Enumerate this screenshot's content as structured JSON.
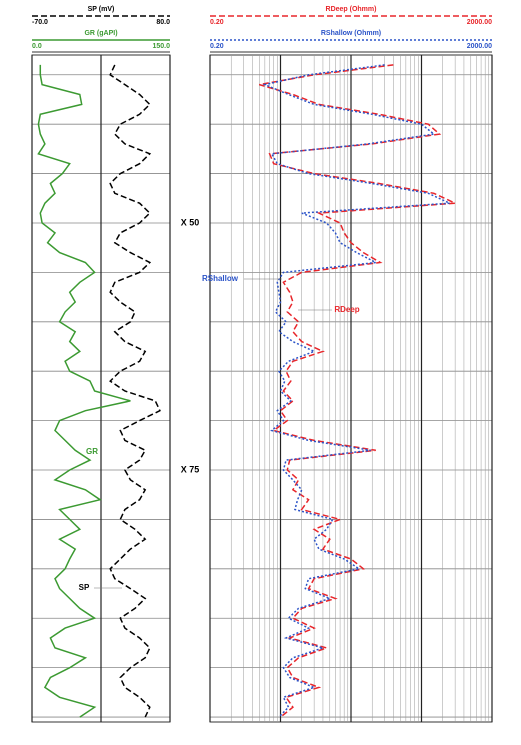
{
  "chart_data": {
    "type": "well-log",
    "depth": [
      34,
      35,
      36,
      37,
      38,
      39,
      40,
      41,
      42,
      43,
      44,
      45,
      46,
      47,
      48,
      49,
      50,
      51,
      52,
      53,
      54,
      55,
      56,
      57,
      58,
      59,
      60,
      61,
      62,
      63,
      64,
      65,
      66,
      67,
      68,
      69,
      70,
      71,
      72,
      73,
      74,
      75,
      76,
      77,
      78,
      79,
      80,
      81,
      82,
      83,
      84,
      85,
      86,
      87,
      88,
      89,
      90,
      91,
      92,
      93,
      94,
      95,
      96,
      97,
      98,
      99,
      100
    ],
    "ylim": [
      33,
      100.5
    ],
    "yticks": [
      {
        "value": 50,
        "label": "X 50"
      },
      {
        "value": 75,
        "label": "X 75"
      }
    ],
    "grid_depths": [
      35,
      40,
      45,
      50,
      55,
      60,
      65,
      70,
      75,
      80,
      85,
      90,
      95,
      100
    ],
    "tracks": [
      {
        "log_scale": false,
        "xticks": [
          0,
          75,
          150
        ],
        "series": [
          {
            "name": "SP (mV)",
            "color": "#000000",
            "dash": "dashed",
            "scale": [
              {
                "value": -70,
                "label": "-70.0"
              },
              {
                "value": 80,
                "label": "80.0"
              }
            ],
            "values": [
              20,
              15,
              31,
              47,
              58,
              47,
              26,
              20,
              31,
              58,
              47,
              26,
              15,
              20,
              47,
              58,
              47,
              26,
              20,
              37,
              58,
              47,
              20,
              15,
              26,
              42,
              37,
              20,
              31,
              53,
              47,
              26,
              15,
              31,
              64,
              69,
              47,
              26,
              31,
              53,
              47,
              31,
              37,
              53,
              47,
              31,
              26,
              42,
              53,
              37,
              26,
              15,
              20,
              37,
              53,
              42,
              26,
              31,
              47,
              58,
              53,
              37,
              26,
              31,
              47,
              58,
              53
            ]
          },
          {
            "name": "GR (gAPI)",
            "color": "#3c9a32",
            "dash": "solid",
            "scale": [
              {
                "value": 0,
                "label": "0.0"
              },
              {
                "value": 150,
                "label": "150.0"
              }
            ],
            "values": [
              9,
              9,
              11,
              52,
              54,
              9,
              7,
              9,
              14,
              7,
              41,
              33,
              20,
              25,
              14,
              9,
              11,
              25,
              17,
              30,
              58,
              68,
              52,
              41,
              47,
              36,
              30,
              47,
              41,
              52,
              36,
              41,
              63,
              68,
              107,
              58,
              30,
              25,
              36,
              47,
              63,
              41,
              25,
              58,
              74,
              30,
              41,
              52,
              30,
              47,
              41,
              36,
              25,
              30,
              41,
              52,
              68,
              36,
              20,
              25,
              58,
              41,
              20,
              14,
              30,
              68,
              52
            ]
          }
        ],
        "annotations": [
          "GR",
          "SP"
        ]
      },
      {
        "log_scale": true,
        "xticks": [
          0.2,
          2,
          20,
          200,
          2000
        ],
        "minor_xticks": [
          0.4,
          0.6,
          0.8,
          1.0,
          1.2,
          1.4,
          1.6,
          1.8,
          4,
          6,
          8,
          10,
          12,
          14,
          16,
          18,
          40,
          60,
          80,
          100,
          120,
          140,
          160,
          180,
          400,
          600,
          800,
          1000,
          1200,
          1400,
          1600,
          1800
        ],
        "series": [
          {
            "name": "RDeep (Ohmm)",
            "color": "#e8262b",
            "dash": "dashed",
            "scale": [
              {
                "value": 0.2,
                "label": "0.20"
              },
              {
                "value": 2000,
                "label": "2000.00"
              }
            ],
            "values": [
              80,
              6,
              1.0,
              3,
              7,
              50,
              250,
              360,
              40,
              1.4,
              1.6,
              6,
              50,
              300,
              600,
              7,
              14,
              16,
              20,
              30,
              52,
              4,
              2.2,
              2.7,
              3,
              2.5,
              3.6,
              3,
              4,
              8,
              3,
              2.4,
              2.8,
              2.2,
              3,
              2,
              2.5,
              1.6,
              6,
              45,
              2.7,
              2.5,
              3.6,
              3,
              5,
              4,
              14,
              6,
              10,
              8,
              20,
              30,
              6,
              5,
              12,
              4,
              3,
              6,
              2.7,
              9,
              3.6,
              2.5,
              3,
              7,
              2.4,
              3,
              2
            ]
          },
          {
            "name": "RShallow (Ohmm)",
            "color": "#2c54c8",
            "dash": "dotted",
            "scale": [
              {
                "value": 0.2,
                "label": "0.20"
              },
              {
                "value": 2000,
                "label": "2000.00"
              }
            ],
            "values": [
              60,
              5,
              1.2,
              2.6,
              6,
              40,
              200,
              300,
              35,
              1.5,
              1.8,
              5,
              40,
              250,
              500,
              4,
              9,
              12,
              14,
              24,
              45,
              2.2,
              1.8,
              1.9,
              2,
              1.7,
              2.4,
              1.9,
              3,
              6,
              2.6,
              1.9,
              2.3,
              2,
              2.8,
              1.8,
              2.2,
              1.5,
              5,
              38,
              2.4,
              2.2,
              3,
              4,
              3.5,
              3.2,
              11,
              9,
              6,
              7,
              16,
              26,
              5,
              4.5,
              10,
              3.6,
              2.6,
              5,
              2.4,
              8,
              3,
              2.2,
              2.7,
              6,
              2.2,
              2.6,
              1.9
            ]
          }
        ],
        "annotations": [
          "RShallow",
          "RDeep"
        ]
      }
    ]
  }
}
